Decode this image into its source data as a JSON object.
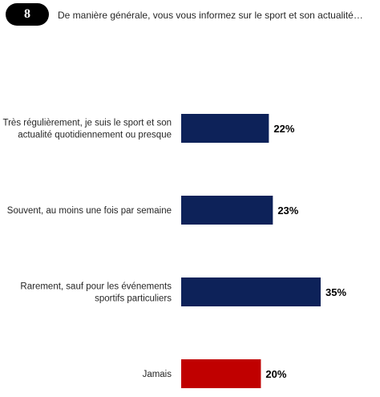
{
  "question": {
    "number": "8",
    "text": "De manière générale, vous vous informez sur le sport et son actualité…"
  },
  "chart_data": {
    "type": "bar",
    "orientation": "horizontal",
    "categories": [
      [
        "Très régulièrement, je suis le sport et son",
        "actualité quotidiennement ou presque"
      ],
      [
        "Souvent, au moins une fois par semaine"
      ],
      [
        "Rarement, sauf pour les événements",
        "sportifs particuliers"
      ],
      [
        "Jamais"
      ]
    ],
    "values": [
      22,
      23,
      35,
      20
    ],
    "value_labels": [
      "22%",
      "23%",
      "35%",
      "20%"
    ],
    "colors": [
      "#0d2259",
      "#0d2259",
      "#0d2259",
      "#c00000"
    ],
    "grid": false,
    "legend": "none"
  }
}
